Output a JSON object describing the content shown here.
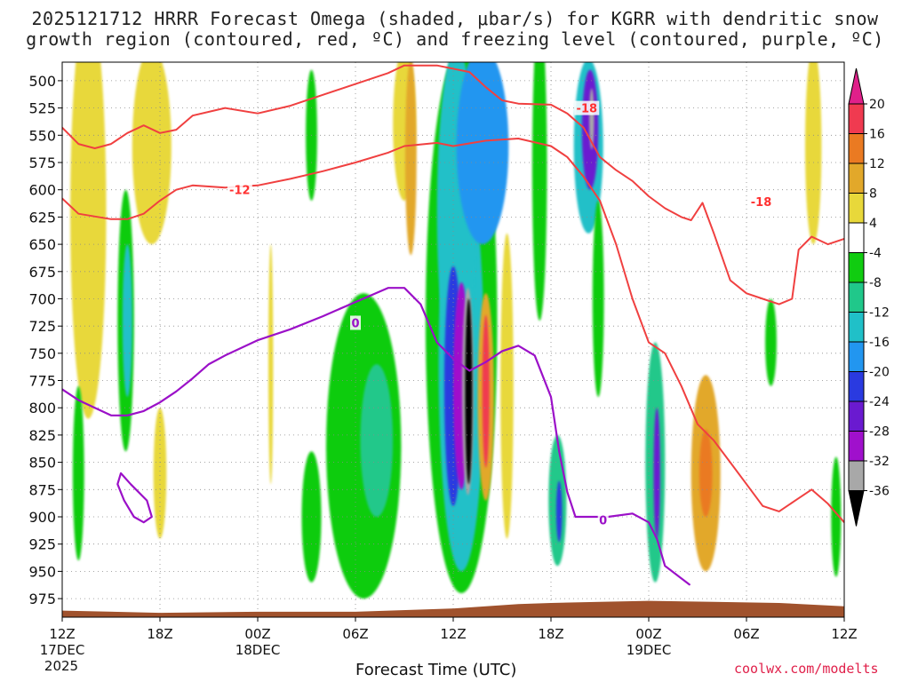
{
  "chart_data": {
    "type": "heatmap",
    "title_line1": "2025121712 HRRR Forecast Omega (shaded, μbar/s) for KGRR with dendritic snow",
    "title_line2": "growth region (contoured, red, ºC) and freezing level (contoured, purple, ºC)",
    "xlabel": "Forecast Time (UTC)",
    "ylabel": "Pressure (hPa)",
    "credit": "coolwx.com/modelts",
    "x_ticks": [
      {
        "hour": 0,
        "label": "12Z",
        "sub1": "17DEC",
        "sub2": "2025"
      },
      {
        "hour": 6,
        "label": "18Z",
        "sub1": "",
        "sub2": ""
      },
      {
        "hour": 12,
        "label": "00Z",
        "sub1": "18DEC",
        "sub2": ""
      },
      {
        "hour": 18,
        "label": "06Z",
        "sub1": "",
        "sub2": ""
      },
      {
        "hour": 24,
        "label": "12Z",
        "sub1": "",
        "sub2": ""
      },
      {
        "hour": 30,
        "label": "18Z",
        "sub1": "",
        "sub2": ""
      },
      {
        "hour": 36,
        "label": "00Z",
        "sub1": "19DEC",
        "sub2": ""
      },
      {
        "hour": 42,
        "label": "06Z",
        "sub1": "",
        "sub2": ""
      },
      {
        "hour": 48,
        "label": "12Z",
        "sub1": "",
        "sub2": ""
      }
    ],
    "xlim_hours": [
      0,
      48
    ],
    "y_ticks": [
      500,
      525,
      550,
      575,
      600,
      625,
      650,
      675,
      700,
      725,
      750,
      775,
      800,
      825,
      850,
      875,
      900,
      925,
      950,
      975
    ],
    "ylim_hpa": [
      483,
      992
    ],
    "colorbar": {
      "ticks": [
        20,
        16,
        12,
        8,
        4,
        -4,
        -8,
        -12,
        -16,
        -20,
        -24,
        -28,
        -32,
        -36
      ],
      "bins": [
        {
          "lo": 16,
          "hi": 20,
          "color": "#f03a50"
        },
        {
          "lo": 12,
          "hi": 16,
          "color": "#ea7a22"
        },
        {
          "lo": 8,
          "hi": 12,
          "color": "#e2a82a"
        },
        {
          "lo": 4,
          "hi": 8,
          "color": "#e8d83a"
        },
        {
          "lo": -4,
          "hi": 4,
          "color": "#ffffff"
        },
        {
          "lo": -8,
          "hi": -4,
          "color": "#10cc10"
        },
        {
          "lo": -12,
          "hi": -8,
          "color": "#20c88a"
        },
        {
          "lo": -16,
          "hi": -12,
          "color": "#20c0c8"
        },
        {
          "lo": -20,
          "hi": -16,
          "color": "#2296f0"
        },
        {
          "lo": -24,
          "hi": -20,
          "color": "#2a3ae0"
        },
        {
          "lo": -28,
          "hi": -24,
          "color": "#6a1ad0"
        },
        {
          "lo": -32,
          "hi": -28,
          "color": "#a010cc"
        },
        {
          "lo": -36,
          "hi": -32,
          "color": "#a8a8a8"
        }
      ],
      "top_arrow_color": "#e0208a",
      "bottom_arrow_color": "#000000"
    },
    "omega_features": [
      {
        "t": 1.6,
        "p": 600,
        "dt": 0.55,
        "dp": 130,
        "value": 12
      },
      {
        "t": 1.6,
        "p": 620,
        "dt": 1.1,
        "dp": 190,
        "value": 6
      },
      {
        "t": 5.5,
        "p": 560,
        "dt": 1.2,
        "dp": 90,
        "value": 5
      },
      {
        "t": 3.9,
        "p": 720,
        "dt": 0.5,
        "dp": 120,
        "value": -6
      },
      {
        "t": 4.0,
        "p": 720,
        "dt": 0.3,
        "dp": 70,
        "value": -13
      },
      {
        "t": 1.0,
        "p": 860,
        "dt": 0.35,
        "dp": 80,
        "value": -6
      },
      {
        "t": 6.0,
        "p": 860,
        "dt": 0.4,
        "dp": 60,
        "value": 6
      },
      {
        "t": 12.8,
        "p": 760,
        "dt": 0.15,
        "dp": 110,
        "value": 5
      },
      {
        "t": 18.5,
        "p": 835,
        "dt": 2.3,
        "dp": 140,
        "value": -6
      },
      {
        "t": 19.3,
        "p": 830,
        "dt": 1.0,
        "dp": 70,
        "value": -10
      },
      {
        "t": 15.3,
        "p": 550,
        "dt": 0.35,
        "dp": 60,
        "value": -6
      },
      {
        "t": 21.0,
        "p": 540,
        "dt": 0.7,
        "dp": 70,
        "value": 5
      },
      {
        "t": 21.4,
        "p": 570,
        "dt": 0.35,
        "dp": 90,
        "value": 10
      },
      {
        "t": 24.5,
        "p": 720,
        "dt": 2.2,
        "dp": 250,
        "value": -7
      },
      {
        "t": 24.5,
        "p": 760,
        "dt": 1.4,
        "dp": 190,
        "value": -13
      },
      {
        "t": 24.2,
        "p": 620,
        "dt": 1.2,
        "dp": 150,
        "value": -16
      },
      {
        "t": 25.8,
        "p": 560,
        "dt": 1.6,
        "dp": 90,
        "value": -18
      },
      {
        "t": 24.0,
        "p": 780,
        "dt": 0.55,
        "dp": 110,
        "value": -23
      },
      {
        "t": 24.5,
        "p": 780,
        "dt": 0.5,
        "dp": 95,
        "value": -29
      },
      {
        "t": 24.9,
        "p": 785,
        "dt": 0.35,
        "dp": 95,
        "value": -34
      },
      {
        "t": 24.95,
        "p": 785,
        "dt": 0.22,
        "dp": 85,
        "value": -40
      },
      {
        "t": 26.0,
        "p": 790,
        "dt": 0.5,
        "dp": 95,
        "value": 10
      },
      {
        "t": 26.0,
        "p": 785,
        "dt": 0.22,
        "dp": 70,
        "value": 18
      },
      {
        "t": 27.3,
        "p": 780,
        "dt": 0.4,
        "dp": 140,
        "value": 5
      },
      {
        "t": 29.3,
        "p": 580,
        "dt": 0.45,
        "dp": 140,
        "value": -6
      },
      {
        "t": 30.4,
        "p": 885,
        "dt": 0.55,
        "dp": 60,
        "value": -10
      },
      {
        "t": 30.5,
        "p": 895,
        "dt": 0.18,
        "dp": 28,
        "value": -23
      },
      {
        "t": 32.3,
        "p": 560,
        "dt": 0.9,
        "dp": 80,
        "value": -14
      },
      {
        "t": 32.4,
        "p": 545,
        "dt": 0.5,
        "dp": 55,
        "value": -27
      },
      {
        "t": 32.5,
        "p": 535,
        "dt": 0.15,
        "dp": 28,
        "value": -34
      },
      {
        "t": 32.9,
        "p": 700,
        "dt": 0.35,
        "dp": 90,
        "value": -6
      },
      {
        "t": 36.4,
        "p": 850,
        "dt": 0.6,
        "dp": 110,
        "value": -10
      },
      {
        "t": 36.5,
        "p": 860,
        "dt": 0.2,
        "dp": 60,
        "value": -25
      },
      {
        "t": 39.5,
        "p": 860,
        "dt": 0.9,
        "dp": 90,
        "value": 9
      },
      {
        "t": 39.5,
        "p": 860,
        "dt": 0.4,
        "dp": 40,
        "value": 13
      },
      {
        "t": 43.5,
        "p": 740,
        "dt": 0.35,
        "dp": 40,
        "value": -6
      },
      {
        "t": 46.1,
        "p": 560,
        "dt": 0.5,
        "dp": 90,
        "value": 5
      },
      {
        "t": 47.5,
        "p": 900,
        "dt": 0.3,
        "dp": 55,
        "value": -6
      },
      {
        "t": 15.3,
        "p": 900,
        "dt": 0.6,
        "dp": 60,
        "value": -6
      }
    ],
    "dgz_minus12": [
      [
        0,
        608
      ],
      [
        1,
        622
      ],
      [
        3,
        627
      ],
      [
        4,
        627
      ],
      [
        5,
        622
      ],
      [
        6,
        610
      ],
      [
        7,
        600
      ],
      [
        8,
        596
      ],
      [
        10,
        598
      ],
      [
        12,
        596
      ],
      [
        14,
        590
      ],
      [
        16,
        583
      ],
      [
        18,
        575
      ],
      [
        20,
        566
      ],
      [
        21,
        560
      ],
      [
        23,
        557
      ],
      [
        24,
        560
      ],
      [
        26,
        555
      ],
      [
        28,
        553
      ],
      [
        30,
        560
      ],
      [
        31,
        570
      ],
      [
        32,
        588
      ],
      [
        33,
        610
      ],
      [
        34,
        650
      ],
      [
        35,
        700
      ],
      [
        36,
        740
      ],
      [
        37,
        750
      ],
      [
        38,
        780
      ],
      [
        39,
        815
      ],
      [
        40,
        830
      ],
      [
        41,
        850
      ],
      [
        42,
        870
      ],
      [
        43,
        890
      ],
      [
        44,
        895
      ],
      [
        45,
        885
      ],
      [
        46,
        875
      ],
      [
        47,
        888
      ],
      [
        48,
        905
      ]
    ],
    "dgz_minus18": [
      [
        0,
        543
      ],
      [
        1,
        558
      ],
      [
        2,
        562
      ],
      [
        3,
        558
      ],
      [
        4,
        548
      ],
      [
        5,
        541
      ],
      [
        6,
        548
      ],
      [
        7,
        545
      ],
      [
        8,
        532
      ],
      [
        10,
        525
      ],
      [
        12,
        530
      ],
      [
        14,
        523
      ],
      [
        16,
        513
      ],
      [
        18,
        503
      ],
      [
        20,
        493
      ],
      [
        21,
        486
      ],
      [
        23,
        486
      ],
      [
        25,
        492
      ],
      [
        26,
        506
      ],
      [
        27,
        518
      ],
      [
        28,
        521
      ],
      [
        30,
        522
      ],
      [
        31,
        530
      ],
      [
        32,
        543
      ],
      [
        33,
        570
      ],
      [
        34,
        582
      ],
      [
        35,
        592
      ],
      [
        36,
        606
      ],
      [
        37,
        617
      ],
      [
        38,
        625
      ],
      [
        38.6,
        628
      ],
      [
        39.3,
        612
      ],
      [
        40.0,
        640
      ],
      [
        41.0,
        683
      ],
      [
        42.0,
        695
      ],
      [
        43.0,
        700
      ],
      [
        44.0,
        705
      ],
      [
        44.8,
        700
      ],
      [
        45.2,
        655
      ],
      [
        46.0,
        643
      ],
      [
        47.0,
        650
      ],
      [
        48.0,
        645
      ]
    ],
    "freezing_level_0C": [
      [
        0,
        783
      ],
      [
        1,
        793
      ],
      [
        2,
        800
      ],
      [
        3,
        807
      ],
      [
        4,
        807
      ],
      [
        5,
        803
      ],
      [
        6,
        795
      ],
      [
        7,
        785
      ],
      [
        8,
        773
      ],
      [
        9,
        760
      ],
      [
        10,
        752
      ],
      [
        12,
        738
      ],
      [
        14,
        728
      ],
      [
        16,
        716
      ],
      [
        18,
        703
      ],
      [
        20,
        690
      ],
      [
        21,
        690
      ],
      [
        22,
        705
      ],
      [
        23,
        740
      ],
      [
        24,
        755
      ],
      [
        25,
        766
      ],
      [
        26,
        758
      ],
      [
        27,
        748
      ],
      [
        28,
        743
      ],
      [
        29,
        752
      ],
      [
        30,
        790
      ],
      [
        30.5,
        840
      ],
      [
        31,
        877
      ],
      [
        31.5,
        900
      ],
      [
        32,
        900
      ],
      [
        33.5,
        900
      ],
      [
        35,
        897
      ],
      [
        36,
        905
      ],
      [
        36.5,
        920
      ],
      [
        37,
        945
      ],
      [
        38.5,
        962
      ]
    ],
    "freezing_closed_loop": [
      [
        3.6,
        860
      ],
      [
        4.2,
        870
      ],
      [
        5.2,
        885
      ],
      [
        5.5,
        900
      ],
      [
        5.0,
        905
      ],
      [
        4.4,
        900
      ],
      [
        3.8,
        885
      ],
      [
        3.4,
        870
      ],
      [
        3.6,
        860
      ]
    ],
    "contour_labels": [
      {
        "t": 10.9,
        "p": 600,
        "text": "-12",
        "color": "#ff3030"
      },
      {
        "t": 32.2,
        "p": 525,
        "text": "-18",
        "color": "#ff3030"
      },
      {
        "t": 42.9,
        "p": 611,
        "text": "-18",
        "color": "#ff3030"
      },
      {
        "t": 18.0,
        "p": 722,
        "text": "0",
        "color": "#9b10c8"
      },
      {
        "t": 33.2,
        "p": 903,
        "text": "0",
        "color": "#9b10c8"
      }
    ],
    "terrain_color": "#a0522d",
    "terrain_profile": [
      [
        0,
        986
      ],
      [
        6,
        988
      ],
      [
        12,
        987
      ],
      [
        18,
        987
      ],
      [
        24,
        984
      ],
      [
        28,
        980
      ],
      [
        30,
        979
      ],
      [
        33,
        978
      ],
      [
        36,
        977
      ],
      [
        40,
        978
      ],
      [
        44,
        979
      ],
      [
        48,
        982
      ]
    ],
    "colors": {
      "dgz_line": "#f04040",
      "freezing_line": "#9b10c8",
      "grid": "#8a8a8a"
    }
  }
}
